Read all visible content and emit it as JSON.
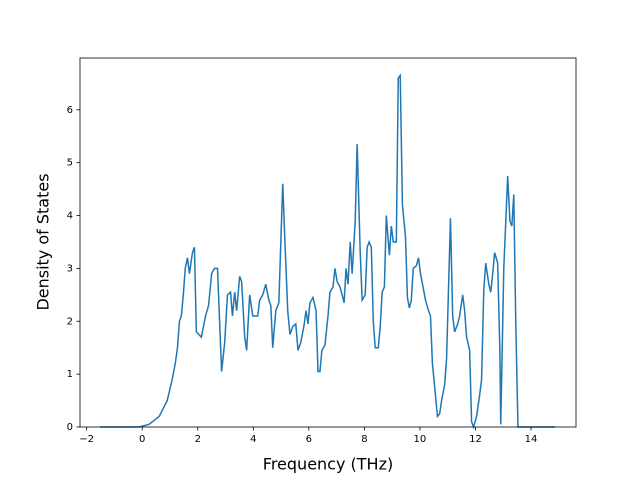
{
  "chart_data": {
    "type": "line",
    "xlabel": "Frequency (THz)",
    "ylabel": "Density of States",
    "x": [
      -1.52,
      -0.11,
      0.25,
      0.61,
      0.9,
      1.08,
      1.19,
      1.27,
      1.34,
      1.41,
      1.48,
      1.55,
      1.63,
      1.7,
      1.81,
      1.88,
      1.95,
      2.13,
      2.28,
      2.39,
      2.5,
      2.6,
      2.71,
      2.86,
      2.97,
      3.07,
      3.18,
      3.25,
      3.33,
      3.4,
      3.51,
      3.58,
      3.69,
      3.76,
      3.87,
      3.98,
      4.16,
      4.23,
      4.34,
      4.45,
      4.56,
      4.63,
      4.7,
      4.81,
      4.92,
      5.06,
      5.14,
      5.24,
      5.32,
      5.42,
      5.53,
      5.61,
      5.71,
      5.82,
      5.9,
      5.97,
      6.04,
      6.15,
      6.26,
      6.33,
      6.4,
      6.47,
      6.58,
      6.69,
      6.76,
      6.87,
      6.94,
      7.02,
      7.12,
      7.2,
      7.27,
      7.34,
      7.41,
      7.49,
      7.56,
      7.67,
      7.74,
      7.85,
      7.92,
      8.03,
      8.1,
      8.17,
      8.25,
      8.32,
      8.39,
      8.5,
      8.57,
      8.64,
      8.72,
      8.79,
      8.9,
      8.97,
      9.04,
      9.15,
      9.22,
      9.29,
      9.37,
      9.48,
      9.55,
      9.62,
      9.69,
      9.76,
      9.87,
      9.95,
      10.02,
      10.13,
      10.2,
      10.31,
      10.38,
      10.45,
      10.56,
      10.63,
      10.71,
      10.78,
      10.89,
      10.96,
      11.1,
      11.18,
      11.25,
      11.36,
      11.43,
      11.54,
      11.61,
      11.68,
      11.79,
      11.86,
      11.93,
      12.04,
      12.15,
      12.22,
      12.3,
      12.37,
      12.48,
      12.55,
      12.62,
      12.69,
      12.8,
      12.88,
      12.91,
      13.02,
      13.16,
      13.24,
      13.31,
      13.38,
      13.45,
      13.53,
      14.86
    ],
    "series": [
      {
        "color": "#1f77b4",
        "values": [
          0,
          0,
          0.05,
          0.2,
          0.5,
          0.9,
          1.2,
          1.5,
          2.0,
          2.1,
          2.5,
          3.0,
          3.2,
          2.9,
          3.3,
          3.4,
          1.8,
          1.7,
          2.1,
          2.3,
          2.9,
          3.0,
          3.0,
          1.05,
          1.6,
          2.5,
          2.55,
          2.1,
          2.55,
          2.2,
          2.85,
          2.75,
          1.7,
          1.45,
          2.5,
          2.1,
          2.1,
          2.4,
          2.5,
          2.7,
          2.4,
          2.3,
          1.5,
          2.2,
          2.35,
          4.6,
          3.5,
          2.2,
          1.75,
          1.9,
          1.95,
          1.45,
          1.6,
          1.9,
          2.2,
          1.95,
          2.35,
          2.45,
          2.2,
          1.05,
          1.05,
          1.45,
          1.55,
          2.1,
          2.55,
          2.65,
          3.0,
          2.75,
          2.65,
          2.5,
          2.35,
          3.0,
          2.7,
          3.5,
          2.9,
          3.9,
          5.35,
          3.3,
          2.4,
          2.5,
          3.4,
          3.5,
          3.4,
          2.0,
          1.5,
          1.5,
          1.9,
          2.55,
          2.65,
          4.0,
          3.25,
          3.8,
          3.5,
          3.5,
          6.6,
          6.65,
          4.2,
          3.6,
          2.45,
          2.25,
          2.4,
          3.0,
          3.05,
          3.2,
          2.9,
          2.6,
          2.4,
          2.2,
          2.1,
          1.2,
          0.6,
          0.2,
          0.25,
          0.5,
          0.8,
          1.3,
          3.95,
          2.1,
          1.8,
          1.95,
          2.1,
          2.5,
          2.2,
          1.7,
          1.45,
          0.1,
          0,
          0.2,
          0.6,
          0.9,
          2.6,
          3.1,
          2.7,
          2.55,
          2.9,
          3.3,
          3.1,
          1.4,
          0.05,
          3.0,
          4.75,
          3.9,
          3.8,
          4.4,
          2.0,
          0,
          0
        ]
      }
    ],
    "xlim": [
      -2.24,
      15.62
    ],
    "ylim": [
      0,
      6.98
    ],
    "xticks": [
      {
        "value": -2,
        "label": "−2"
      },
      0,
      2,
      4,
      6,
      8,
      10,
      12,
      14
    ],
    "yticks": [
      0,
      1,
      2,
      3,
      4,
      5,
      6
    ]
  }
}
